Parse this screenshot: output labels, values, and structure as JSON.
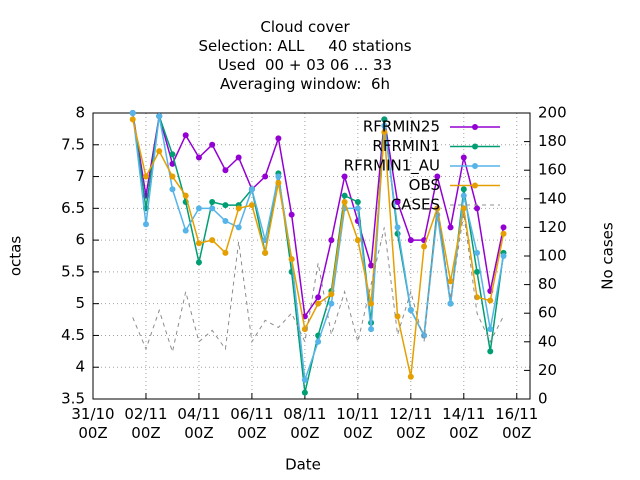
{
  "chart_data": {
    "type": "line",
    "title": "Cloud cover\nSelection: ALL     40 stations\nUsed  00 + 03 06 ... 33\nAveraging window:  6h",
    "x_label": "Date",
    "y_label": "octas",
    "y2_label": "No cases",
    "x": [
      1.5,
      2,
      2.5,
      3,
      3.5,
      4,
      4.5,
      5,
      5.5,
      6,
      6.5,
      7,
      7.5,
      8,
      8.5,
      9,
      9.5,
      10,
      10.5,
      11,
      11.5,
      12,
      12.5,
      13,
      13.5,
      14,
      14.5,
      15,
      15.5
    ],
    "xlim": [
      0,
      16.5
    ],
    "xticks": [
      {
        "value": 0,
        "label": "31/10\n00Z"
      },
      {
        "value": 2,
        "label": "02/11\n00Z"
      },
      {
        "value": 4,
        "label": "04/11\n00Z"
      },
      {
        "value": 6,
        "label": "06/11\n00Z"
      },
      {
        "value": 8,
        "label": "08/11\n00Z"
      },
      {
        "value": 10,
        "label": "10/11\n00Z"
      },
      {
        "value": 12,
        "label": "12/11\n00Z"
      },
      {
        "value": 14,
        "label": "14/11\n00Z"
      },
      {
        "value": 16,
        "label": "16/11\n00Z"
      }
    ],
    "ylim": [
      3.5,
      8
    ],
    "yticks": [
      3.5,
      4,
      4.5,
      5,
      5.5,
      6,
      6.5,
      7,
      7.5,
      8
    ],
    "y2lim": [
      0,
      200
    ],
    "y2ticks": [
      0,
      20,
      40,
      60,
      80,
      100,
      120,
      140,
      160,
      180,
      200
    ],
    "grid": true,
    "legend": "top-right",
    "series": [
      {
        "name": "RFRMIN25",
        "color": "#9400d3",
        "values": [
          8,
          6.7,
          7.95,
          7.2,
          7.65,
          7.3,
          7.5,
          7.1,
          7.3,
          6.8,
          7.0,
          7.6,
          6.4,
          4.8,
          5.1,
          6.0,
          7.0,
          6.3,
          5.6,
          7.9,
          6.6,
          6.0,
          6.0,
          7.0,
          6.2,
          7.3,
          6.5,
          5.2,
          6.2
        ]
      },
      {
        "name": "RFRMIN1",
        "color": "#009e73",
        "values": [
          8,
          6.5,
          7.95,
          7.35,
          6.6,
          5.65,
          6.6,
          6.55,
          6.55,
          6.8,
          5.8,
          7.05,
          5.5,
          3.6,
          4.5,
          5.2,
          6.7,
          6.6,
          4.7,
          7.9,
          6.1,
          4.9,
          4.5,
          6.5,
          5.0,
          6.8,
          5.5,
          4.25,
          5.8
        ]
      },
      {
        "name": "RFRMIN1_AU",
        "color": "#56b4e9",
        "values": [
          8,
          6.25,
          7.95,
          6.8,
          6.15,
          6.5,
          6.5,
          6.3,
          6.2,
          6.8,
          6.0,
          7.0,
          5.7,
          3.8,
          4.4,
          5.0,
          6.5,
          6.5,
          4.6,
          7.8,
          6.2,
          4.9,
          4.5,
          6.4,
          5.0,
          6.7,
          5.8,
          4.6,
          5.75
        ]
      },
      {
        "name": "OBS",
        "color": "#e69f00",
        "values": [
          7.9,
          7.0,
          7.4,
          7.0,
          6.7,
          5.95,
          6.0,
          5.8,
          6.5,
          6.55,
          5.8,
          6.9,
          5.7,
          4.6,
          5.0,
          5.15,
          6.6,
          6.0,
          5.0,
          7.7,
          4.8,
          3.85,
          5.9,
          6.5,
          5.35,
          6.5,
          5.1,
          5.05,
          6.1
        ]
      },
      {
        "name": "CASES",
        "color": "#8c8c8c",
        "axis": "y2",
        "dashed": true,
        "values": [
          57,
          35,
          62,
          33,
          75,
          40,
          48,
          35,
          110,
          40,
          55,
          50,
          60,
          40,
          95,
          45,
          75,
          40,
          80,
          120,
          45,
          75,
          40,
          135,
          70,
          130,
          60,
          40,
          58
        ]
      }
    ]
  }
}
